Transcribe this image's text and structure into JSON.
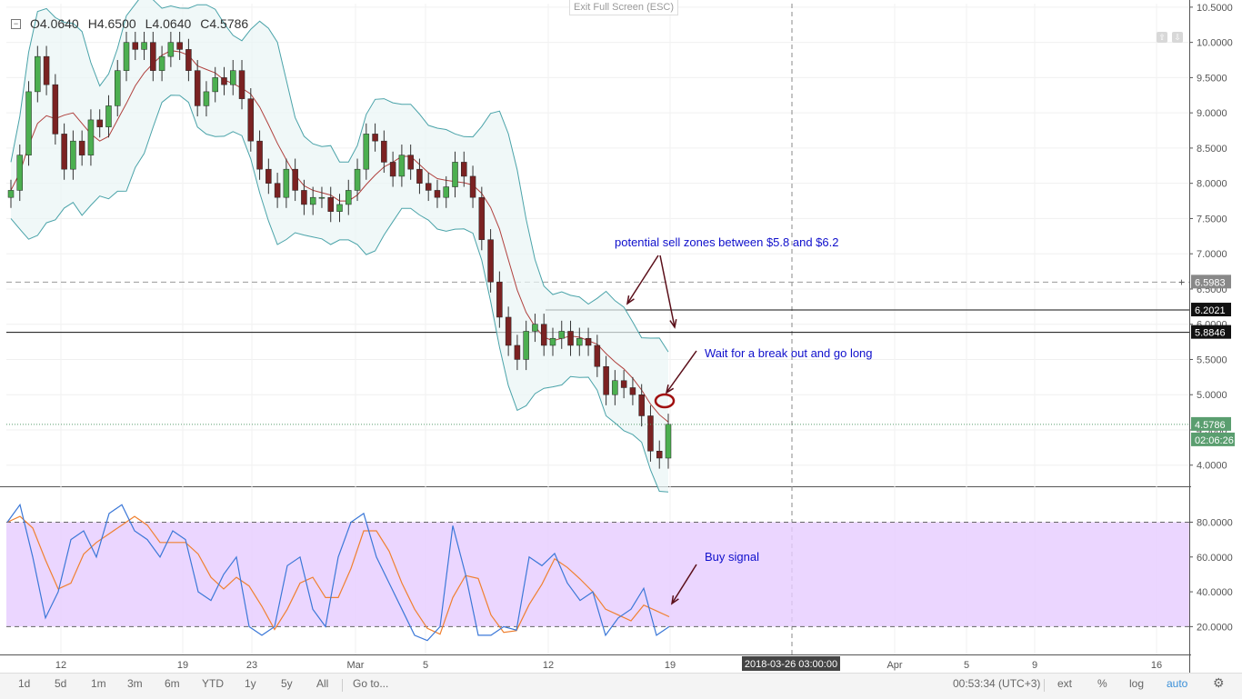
{
  "ohlc": {
    "o": "O4.0640",
    "h": "H4.6500",
    "l": "L4.0640",
    "c": "C4.5786"
  },
  "exit_fullscreen": "Exit Full Screen (ESC)",
  "annotations": {
    "sell_zone": "potential sell zones between $5.8 and $6.2",
    "breakout": "Wait for a break out and go long",
    "buy_signal": "Buy signal"
  },
  "price_axis": {
    "labels": [
      "10.5000",
      "10.0000",
      "9.5000",
      "9.0000",
      "8.5000",
      "8.0000",
      "7.5000",
      "7.0000",
      "6.5000",
      "6.0000",
      "5.5000",
      "5.0000",
      "4.5000",
      "4.0000"
    ],
    "markers": {
      "dashed": "6.5983",
      "upper": "6.2021",
      "lower": "5.8846",
      "last": "4.5786",
      "countdown": "02:06:26"
    },
    "colors": {
      "upper": "#111111",
      "lower": "#111111",
      "last": "#5a9e6f",
      "dashed": "#888888"
    }
  },
  "osc_axis": {
    "labels": [
      "80.0000",
      "60.0000",
      "40.0000",
      "20.0000"
    ]
  },
  "time_axis": {
    "labels": [
      "12",
      "19",
      "23",
      "Mar",
      "5",
      "12",
      "19",
      "Apr",
      "5",
      "9",
      "16"
    ],
    "crosshair": "2018-03-26 03:00:00"
  },
  "bottom_bar": {
    "ranges": [
      "1d",
      "5d",
      "1m",
      "3m",
      "6m",
      "YTD",
      "1y",
      "5y",
      "All"
    ],
    "goto": "Go to...",
    "time": "00:53:34 (UTC+3)",
    "options": [
      "ext",
      "%",
      "log",
      "auto"
    ]
  },
  "chart_data": {
    "type": "candlestick",
    "y_range": [
      3.7,
      10.55
    ],
    "oscillator_range": [
      4,
      98
    ],
    "levels": [
      5.8846,
      6.2021,
      6.5983
    ],
    "close": [
      7.9,
      8.4,
      9.3,
      9.8,
      9.4,
      8.7,
      8.2,
      8.6,
      8.4,
      8.9,
      8.8,
      9.1,
      9.6,
      10.0,
      9.9,
      10.0,
      9.6,
      9.8,
      10.0,
      9.9,
      9.6,
      9.1,
      9.3,
      9.5,
      9.4,
      9.6,
      9.2,
      8.6,
      8.2,
      8.0,
      7.8,
      8.2,
      7.9,
      7.7,
      7.8,
      7.8,
      7.6,
      7.7,
      7.9,
      8.2,
      8.7,
      8.6,
      8.3,
      8.1,
      8.4,
      8.2,
      8.0,
      7.9,
      7.8,
      7.95,
      8.3,
      8.1,
      7.8,
      7.2,
      6.6,
      6.1,
      5.7,
      5.5,
      5.9,
      6.0,
      5.7,
      5.8,
      5.9,
      5.7,
      5.8,
      5.7,
      5.4,
      5.0,
      5.2,
      5.1,
      5.0,
      4.7,
      4.2,
      4.1,
      4.58
    ],
    "stoch_k": [
      80,
      90,
      60,
      25,
      40,
      70,
      75,
      60,
      85,
      90,
      75,
      70,
      60,
      75,
      70,
      40,
      35,
      50,
      60,
      20,
      15,
      20,
      55,
      60,
      30,
      20,
      60,
      80,
      85,
      60,
      45,
      30,
      15,
      12,
      20,
      78,
      50,
      15,
      15,
      20,
      18,
      60,
      55,
      62,
      45,
      35,
      40,
      15,
      25,
      30,
      42,
      15,
      20
    ]
  }
}
